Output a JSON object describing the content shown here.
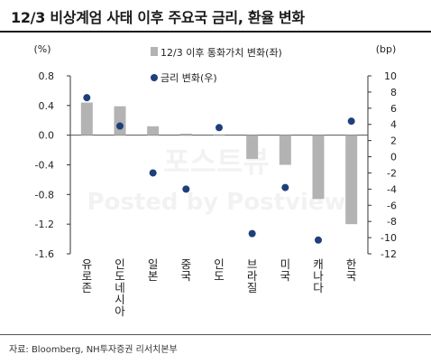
{
  "header": {
    "title": "12/3 비상계엄 사태 이후 주요국 금리, 환율 변화"
  },
  "footer": {
    "source": "자료: Bloomberg, NH투자증권 리서치본부"
  },
  "watermark": {
    "line1": "포스트뷰",
    "line2": "Posted by Postview"
  },
  "chart_data": {
    "type": "bar",
    "categories": [
      "유로존",
      "인도네시아",
      "일본",
      "중국",
      "인도",
      "브라질",
      "미국",
      "캐나다",
      "한국"
    ],
    "series": [
      {
        "name": "12/3 이후 통화가치 변화(좌)",
        "type": "bar",
        "axis": "left",
        "color": "#b3b3b3",
        "values": [
          0.44,
          0.39,
          0.12,
          0.02,
          0.01,
          -0.32,
          -0.4,
          -0.86,
          -1.2
        ]
      },
      {
        "name": "금리 변화(우)",
        "type": "scatter",
        "axis": "right",
        "color": "#1f3f7a",
        "values": [
          7.3,
          3.8,
          -2.0,
          -4.0,
          3.6,
          -9.5,
          -3.8,
          -10.3,
          4.4
        ]
      }
    ],
    "y_left": {
      "unit": "(%)",
      "ylim": [
        -1.6,
        0.8
      ],
      "ticks": [
        "0.8",
        "0.4",
        "0.0",
        "-0.4",
        "-0.8",
        "-1.2",
        "-1.6"
      ]
    },
    "y_right": {
      "unit": "(bp)",
      "ylim": [
        -12,
        10
      ],
      "ticks": [
        "10",
        "8",
        "6",
        "4",
        "2",
        "0",
        "-2",
        "-4",
        "-6",
        "-8",
        "-10",
        "-12"
      ]
    },
    "legend_position": "top-center",
    "grid": false
  }
}
